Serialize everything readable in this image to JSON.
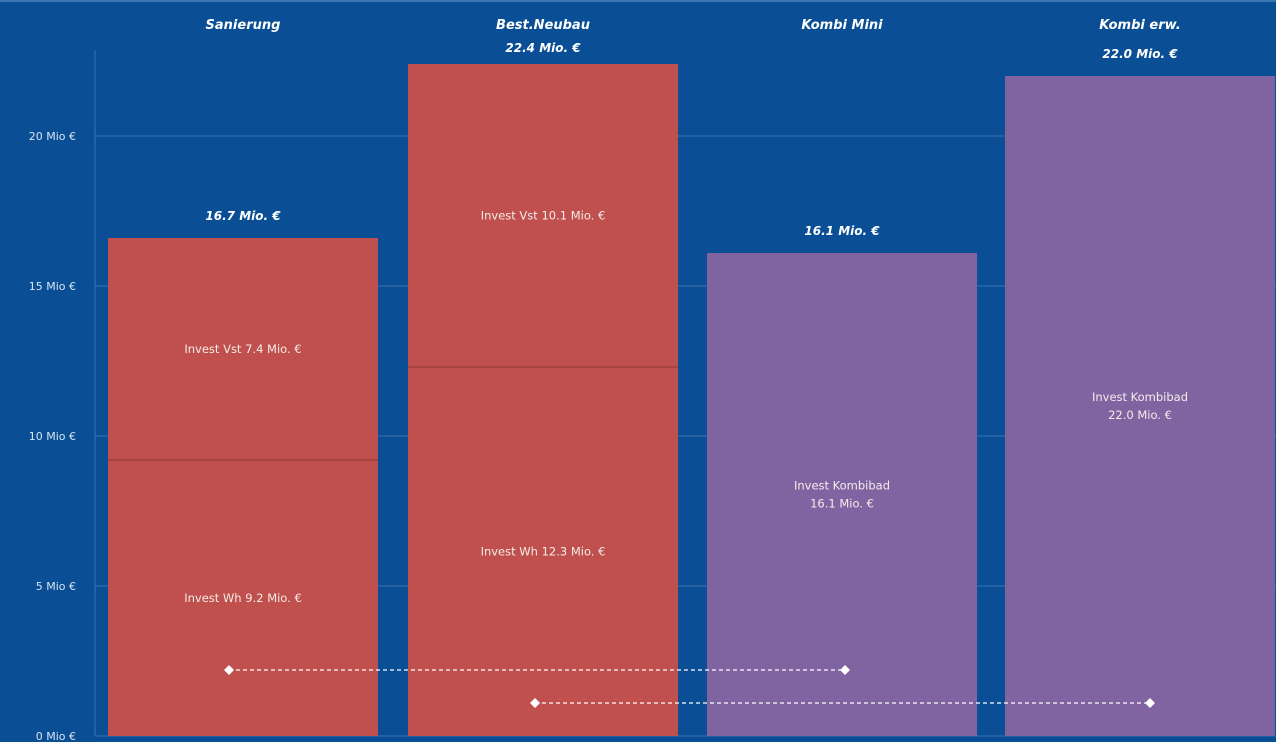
{
  "chart_data": {
    "type": "bar",
    "stacked": true,
    "categories": [
      "Sanierung",
      "Best.Neubau",
      "Kombi Mini",
      "Kombi erw."
    ],
    "totals": [
      "16.7 Mio. €",
      "22.4 Mio. €",
      "16.1 Mio. €",
      "22.0 Mio. €"
    ],
    "y_ticks": [
      "0 Mio €",
      "5 Mio €",
      "10 Mio €",
      "15 Mio €",
      "20 Mio €"
    ],
    "ylim": [
      0,
      24.5
    ],
    "grid": true,
    "colors": {
      "background": "#0a4f95",
      "invest_split": "#c0504d",
      "invest_kombi": "#8064a2",
      "grid": "#3a72ad"
    },
    "bars": [
      {
        "category": "Sanierung",
        "segments": [
          {
            "value": 9.2,
            "label": "Invest Wh 9.2 Mio. €",
            "color": "#c0504d"
          },
          {
            "value": 7.4,
            "label": "Invest Vst 7.4 Mio. €",
            "color": "#c0504d"
          }
        ]
      },
      {
        "category": "Best.Neubau",
        "segments": [
          {
            "value": 12.3,
            "label": "Invest Wh 12.3 Mio. €",
            "color": "#c0504d"
          },
          {
            "value": 10.1,
            "label": "Invest Vst 10.1 Mio. €",
            "color": "#c0504d"
          }
        ]
      },
      {
        "category": "Kombi Mini",
        "segments": [
          {
            "value": 16.1,
            "label": "Invest Kombibad\n16.1 Mio. €",
            "color": "#8064a2"
          }
        ]
      },
      {
        "category": "Kombi erw.",
        "segments": [
          {
            "value": 22.0,
            "label": "Invest Kombibad\n22.0 Mio. €",
            "color": "#8064a2"
          }
        ]
      }
    ],
    "connectors": [
      {
        "from": "Sanierung",
        "to": "Kombi Mini",
        "y": 2.2
      },
      {
        "from": "Best.Neubau",
        "to": "Kombi erw.",
        "y": 1.1
      }
    ]
  }
}
